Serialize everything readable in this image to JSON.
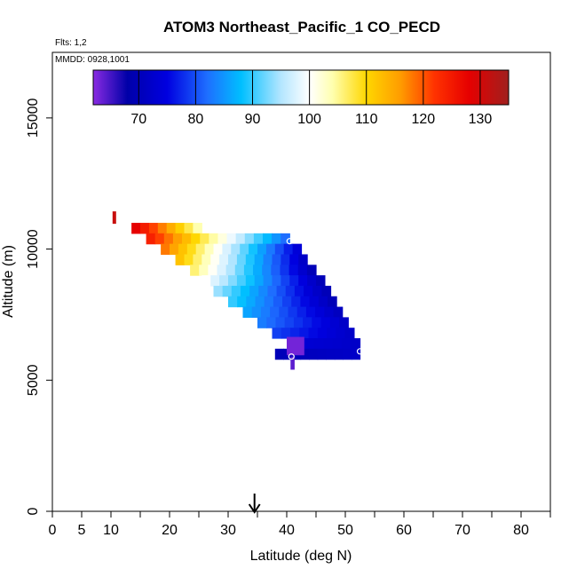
{
  "chart_data": {
    "type": "heatmap",
    "title": "ATOM3 Northeast_Pacific_1 CO_PECD",
    "flights_label": "Flts: 1,2",
    "dates_label": "MMDD: 0928,1001",
    "xlabel": "Latitude (deg N)",
    "ylabel": "Altitude (m)",
    "xlim": [
      0,
      85
    ],
    "ylim": [
      0,
      17500
    ],
    "x_major_ticks": [
      0,
      5,
      10,
      20,
      30,
      40,
      50,
      60,
      70,
      80
    ],
    "x_minor_ticks": [
      15,
      25,
      35,
      45,
      55,
      65,
      75,
      85
    ],
    "y_ticks": [
      0,
      5000,
      10000,
      15000
    ],
    "colorbar": {
      "min": 62,
      "max": 135,
      "ticks": [
        70,
        80,
        90,
        100,
        110,
        120,
        130
      ],
      "stops": [
        {
          "v": 62,
          "c": "#8a2be2"
        },
        {
          "v": 68,
          "c": "#0000a8"
        },
        {
          "v": 75,
          "c": "#0000e0"
        },
        {
          "v": 82,
          "c": "#1e6eff"
        },
        {
          "v": 88,
          "c": "#00bfff"
        },
        {
          "v": 95,
          "c": "#b4e6ff"
        },
        {
          "v": 100,
          "c": "#ffffff"
        },
        {
          "v": 104,
          "c": "#ffffb0"
        },
        {
          "v": 110,
          "c": "#ffd700"
        },
        {
          "v": 116,
          "c": "#ff9c00"
        },
        {
          "v": 122,
          "c": "#ff3200"
        },
        {
          "v": 128,
          "c": "#e60000"
        },
        {
          "v": 135,
          "c": "#a0201e"
        }
      ]
    },
    "heatmap_rows": [
      {
        "alt": 10800,
        "x0": 13.5,
        "x1": 25.5,
        "v0": 128,
        "v1": 104
      },
      {
        "alt": 10400,
        "x0": 16.0,
        "x1": 40.5,
        "v0": 124,
        "v1": 82
      },
      {
        "alt": 10000,
        "x0": 18.5,
        "x1": 42.5,
        "v0": 118,
        "v1": 74
      },
      {
        "alt": 9600,
        "x0": 21.0,
        "x1": 43.5,
        "v0": 112,
        "v1": 72
      },
      {
        "alt": 9200,
        "x0": 23.5,
        "x1": 45.0,
        "v0": 106,
        "v1": 70
      },
      {
        "alt": 8800,
        "x0": 25.5,
        "x1": 46.5,
        "v0": 100,
        "v1": 70
      },
      {
        "alt": 8400,
        "x0": 27.5,
        "x1": 47.5,
        "v0": 94,
        "v1": 70
      },
      {
        "alt": 8000,
        "x0": 30.0,
        "x1": 48.5,
        "v0": 90,
        "v1": 70
      },
      {
        "alt": 7600,
        "x0": 32.5,
        "x1": 49.5,
        "v0": 86,
        "v1": 71
      },
      {
        "alt": 7200,
        "x0": 35.0,
        "x1": 50.5,
        "v0": 83,
        "v1": 72
      },
      {
        "alt": 6800,
        "x0": 37.5,
        "x1": 51.5,
        "v0": 79,
        "v1": 72
      },
      {
        "alt": 6400,
        "x0": 40.0,
        "x1": 52.5,
        "v0": 74,
        "v1": 72
      },
      {
        "alt": 6000,
        "x0": 38.0,
        "x1": 52.5,
        "v0": 70,
        "v1": 72
      }
    ],
    "heatmap_patches": [
      {
        "lat": 41.5,
        "alt": 6300,
        "v": 63,
        "w": 3.0,
        "h": 700
      },
      {
        "lat": 41.0,
        "alt": 5650,
        "v": 64,
        "w": 0.7,
        "h": 500
      }
    ],
    "isolated_point": {
      "lat": 10.5,
      "alt": 11200,
      "v": 131
    },
    "markers": [
      {
        "lat": 40.5,
        "alt": 10300
      },
      {
        "lat": 40.8,
        "alt": 5900
      },
      {
        "lat": 52.5,
        "alt": 6100
      }
    ],
    "arrow_latitude": 34.5
  }
}
